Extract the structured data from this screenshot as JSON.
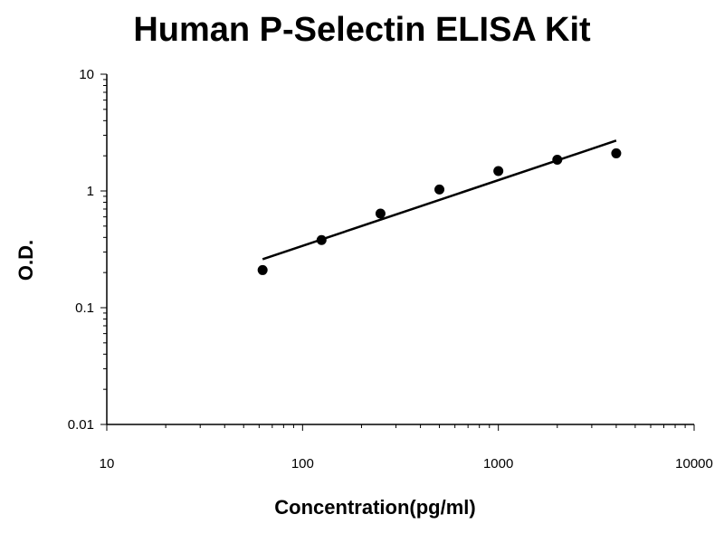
{
  "chart_data": {
    "type": "scatter",
    "title": "Human P-Selectin ELISA Kit",
    "xlabel": "Concentration(pg/ml)",
    "ylabel": "O.D.",
    "xscale": "log",
    "yscale": "log",
    "xlim": [
      10,
      10000
    ],
    "ylim": [
      0.01,
      10
    ],
    "xticks": [
      "10",
      "100",
      "1000",
      "10000"
    ],
    "yticks": [
      "10",
      "1",
      "0.1",
      "0.01"
    ],
    "grid": false,
    "points": {
      "x": [
        62.5,
        125,
        250,
        500,
        1000,
        2000,
        4000
      ],
      "y": [
        0.21,
        0.38,
        0.64,
        1.03,
        1.48,
        1.85,
        2.1
      ]
    },
    "fit_line": {
      "x": [
        62.5,
        4000
      ],
      "y": [
        0.26,
        2.7
      ]
    }
  }
}
